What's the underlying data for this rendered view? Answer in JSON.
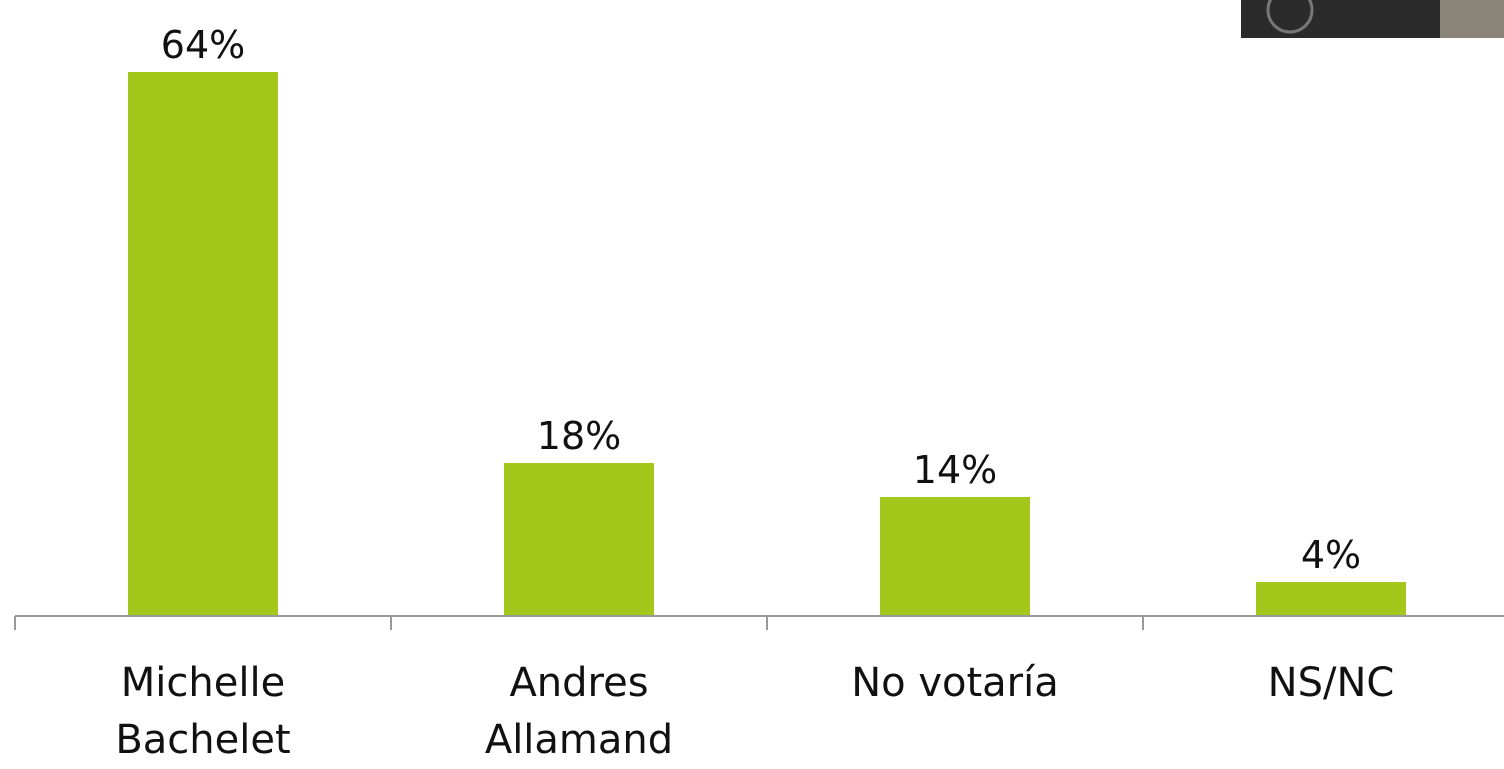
{
  "chart_data": {
    "type": "bar",
    "categories": [
      "Michelle Bachelet",
      "Andres Allamand",
      "No votaría",
      "NS/NC"
    ],
    "values": [
      64,
      18,
      14,
      4
    ],
    "value_labels": [
      "64%",
      "18%",
      "14%",
      "4%"
    ],
    "color": "#a3c71a",
    "ylim": [
      0,
      70
    ]
  }
}
